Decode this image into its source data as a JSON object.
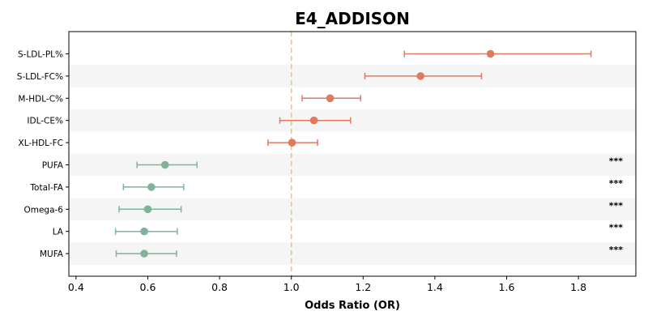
{
  "chart_data": {
    "type": "forest",
    "title": "E4_ADDISON",
    "xlabel": "Odds Ratio (OR)",
    "xlim": [
      0.38,
      1.96
    ],
    "xticks": [
      "0.4",
      "0.6",
      "0.8",
      "1.0",
      "1.2",
      "1.4",
      "1.6",
      "1.8"
    ],
    "reference_line": 1.0,
    "reference_color": "#f0c070",
    "colors": {
      "positive": "#e07a5f",
      "negative": "#81b29a",
      "band": "#f5f5f5"
    },
    "rows": [
      {
        "label": "S-LDL-PL%",
        "or": 1.555,
        "lo": 1.315,
        "hi": 1.835,
        "sig": ""
      },
      {
        "label": "S-LDL-FC%",
        "or": 1.36,
        "lo": 1.205,
        "hi": 1.53,
        "sig": ""
      },
      {
        "label": "M-HDL-C%",
        "or": 1.108,
        "lo": 1.03,
        "hi": 1.193,
        "sig": ""
      },
      {
        "label": "IDL-CE%",
        "or": 1.063,
        "lo": 0.968,
        "hi": 1.165,
        "sig": ""
      },
      {
        "label": "XL-HDL-FC",
        "or": 1.002,
        "lo": 0.935,
        "hi": 1.073,
        "sig": ""
      },
      {
        "label": "PUFA",
        "or": 0.648,
        "lo": 0.57,
        "hi": 0.737,
        "sig": "***"
      },
      {
        "label": "Total-FA",
        "or": 0.61,
        "lo": 0.532,
        "hi": 0.7,
        "sig": "***"
      },
      {
        "label": "Omega-6",
        "or": 0.6,
        "lo": 0.52,
        "hi": 0.693,
        "sig": "***"
      },
      {
        "label": "LA",
        "or": 0.59,
        "lo": 0.51,
        "hi": 0.682,
        "sig": "***"
      },
      {
        "label": "MUFA",
        "or": 0.59,
        "lo": 0.512,
        "hi": 0.68,
        "sig": "***"
      }
    ]
  }
}
